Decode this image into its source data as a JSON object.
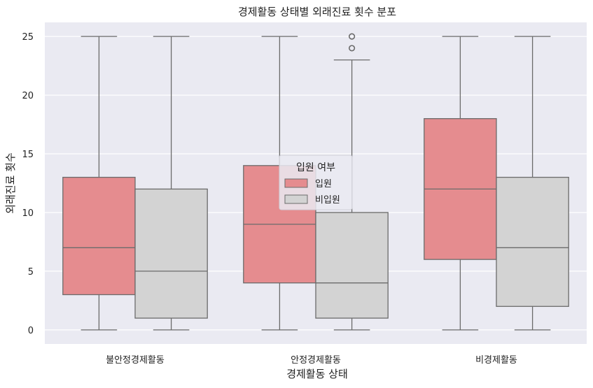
{
  "chart_data": {
    "type": "boxplot",
    "title": "경제활동 상태별 외래진료 횟수 분포",
    "xlabel": "경제활동 상태",
    "ylabel": "외래진료 횟수",
    "categories": [
      "불안정경제활동",
      "안정경제활동",
      "비경제활동"
    ],
    "ylim": [
      -1.2,
      26.2
    ],
    "yticks": [
      0,
      5,
      10,
      15,
      20,
      25
    ],
    "grid": true,
    "legend": {
      "title": "입원 여부",
      "placement": "center"
    },
    "series": [
      {
        "name": "입원",
        "color": "#e58c8f",
        "boxes": [
          {
            "whisker_low": 0,
            "q1": 3,
            "median": 7,
            "q3": 13,
            "whisker_high": 25,
            "outliers": []
          },
          {
            "whisker_low": 0,
            "q1": 4,
            "median": 9,
            "q3": 14,
            "whisker_high": 25,
            "outliers": []
          },
          {
            "whisker_low": 0,
            "q1": 6,
            "median": 12,
            "q3": 18,
            "whisker_high": 25,
            "outliers": []
          }
        ]
      },
      {
        "name": "비입원",
        "color": "#d3d3d3",
        "boxes": [
          {
            "whisker_low": 0,
            "q1": 1,
            "median": 5,
            "q3": 12,
            "whisker_high": 25,
            "outliers": []
          },
          {
            "whisker_low": 0,
            "q1": 1,
            "median": 4,
            "q3": 10,
            "whisker_high": 23,
            "outliers": [
              24,
              25
            ]
          },
          {
            "whisker_low": 0,
            "q1": 2,
            "median": 7,
            "q3": 13,
            "whisker_high": 25,
            "outliers": []
          }
        ]
      }
    ],
    "colors": {
      "background": "#eaeaf2",
      "grid": "#ffffff",
      "line": "#6b6b6b"
    }
  }
}
